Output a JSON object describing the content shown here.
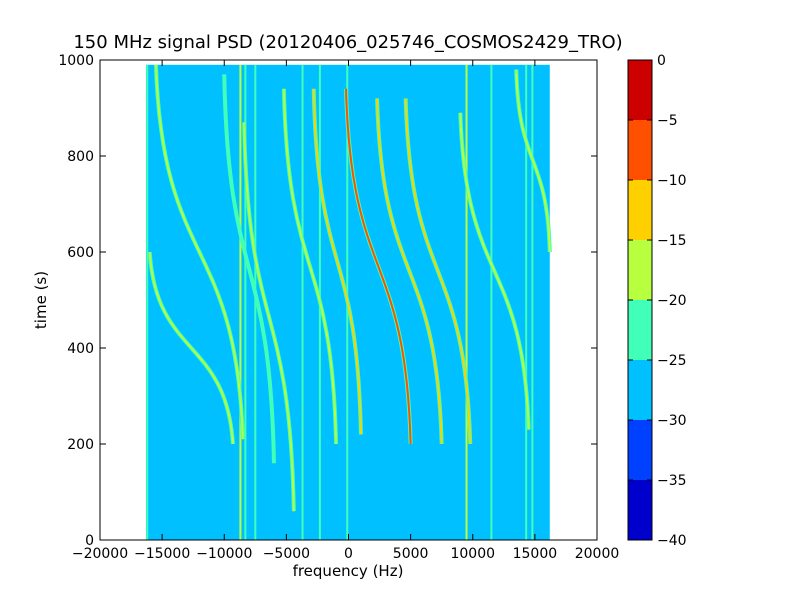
{
  "chart_data": {
    "type": "heatmap",
    "title": "150 MHz signal PSD (20120406_025746_COSMOS2429_TRO)",
    "xlabel": "frequency (Hz)",
    "ylabel": "time (s)",
    "xlim": [
      -20000,
      20000
    ],
    "ylim": [
      0,
      1000
    ],
    "xticks": [
      -20000,
      -15000,
      -10000,
      -5000,
      0,
      5000,
      10000,
      15000,
      20000
    ],
    "xtick_labels": [
      "−20000",
      "−15000",
      "−10000",
      "−5000",
      "0",
      "5000",
      "10000",
      "15000",
      "20000"
    ],
    "yticks": [
      0,
      200,
      400,
      600,
      800,
      1000
    ],
    "ytick_labels": [
      "0",
      "200",
      "400",
      "600",
      "800",
      "1000"
    ],
    "data_extent": {
      "freq_min": -16300,
      "freq_max": 16200,
      "time_min": 0,
      "time_max": 990
    },
    "background_level": [
      -30,
      -25
    ],
    "colorbar": {
      "levels": [
        -40,
        -35,
        -30,
        -25,
        -20,
        -15,
        -10,
        -5,
        0
      ],
      "tick_labels": [
        "−40",
        "−35",
        "−30",
        "−25",
        "−20",
        "−15",
        "−10",
        "−5",
        "0"
      ],
      "colors": [
        "#0000cd",
        "#0040ff",
        "#00c0ff",
        "#40ffb8",
        "#b8ff40",
        "#ffd000",
        "#ff5000",
        "#cd0000"
      ]
    },
    "vertical_lines": [
      {
        "freq": -16200,
        "level": -22
      },
      {
        "freq": -8700,
        "level": -18
      },
      {
        "freq": -8300,
        "level": -22
      },
      {
        "freq": -7500,
        "level": -22
      },
      {
        "freq": -3700,
        "level": -22
      },
      {
        "freq": -2300,
        "level": -22
      },
      {
        "freq": -100,
        "level": -22
      },
      {
        "freq": 9500,
        "level": -18
      },
      {
        "freq": 11500,
        "level": -22
      },
      {
        "freq": 14300,
        "level": -22
      },
      {
        "freq": 14800,
        "level": -22
      }
    ],
    "traces": [
      {
        "f_start": -8400,
        "t_start": 870,
        "f_end": -4400,
        "t_end": 60,
        "level": -20
      },
      {
        "f_start": -10000,
        "t_start": 970,
        "f_end": -6000,
        "t_end": 160,
        "level": -22
      },
      {
        "f_start": -15500,
        "t_start": 990,
        "f_end": -8500,
        "t_end": 210,
        "level": -20
      },
      {
        "f_start": -16000,
        "t_start": 600,
        "f_end": -9300,
        "t_end": 200,
        "level": -20
      },
      {
        "f_start": -5200,
        "t_start": 940,
        "f_end": -1000,
        "t_end": 200,
        "level": -18
      },
      {
        "f_start": -2800,
        "t_start": 940,
        "f_end": 1000,
        "t_end": 220,
        "level": -12
      },
      {
        "f_start": -200,
        "t_start": 940,
        "f_end": 5000,
        "t_end": 200,
        "level": -8
      },
      {
        "f_start": 2300,
        "t_start": 920,
        "f_end": 7500,
        "t_end": 200,
        "level": -15
      },
      {
        "f_start": 4600,
        "t_start": 920,
        "f_end": 9800,
        "t_end": 200,
        "level": -12
      },
      {
        "f_start": 9000,
        "t_start": 890,
        "f_end": 14500,
        "t_end": 230,
        "level": -20
      },
      {
        "f_start": 13500,
        "t_start": 980,
        "f_end": 16200,
        "t_end": 600,
        "level": -20
      }
    ]
  }
}
